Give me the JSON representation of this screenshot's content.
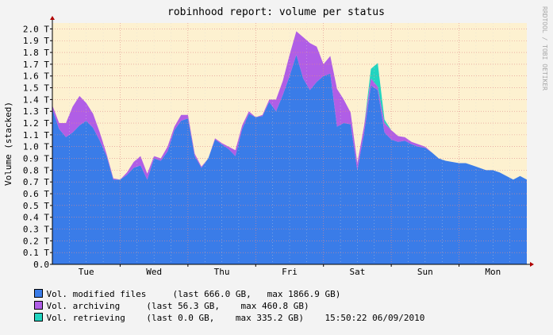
{
  "chart_data": {
    "type": "area",
    "title": "robinhood report: volume per status",
    "ylabel": "Volume (stacked)",
    "side_label": "RRDTOOL / TOBI OETIKER",
    "ylim": [
      0,
      2.05
    ],
    "yticks": [
      0,
      0.1,
      0.2,
      0.3,
      0.4,
      0.5,
      0.6,
      0.7,
      0.8,
      0.9,
      1.0,
      1.1,
      1.2,
      1.3,
      1.4,
      1.5,
      1.6,
      1.7,
      1.8,
      1.9,
      2.0
    ],
    "ytick_labels": [
      "0.0",
      "0.1 T",
      "0.2 T",
      "0.3 T",
      "0.4 T",
      "0.5 T",
      "0.6 T",
      "0.7 T",
      "0.8 T",
      "0.9 T",
      "1.0 T",
      "1.1 T",
      "1.2 T",
      "1.3 T",
      "1.4 T",
      "1.5 T",
      "1.6 T",
      "1.7 T",
      "1.8 T",
      "1.9 T",
      "2.0 T"
    ],
    "xlim": [
      0,
      7.0
    ],
    "xticks": [
      0.5,
      1.5,
      2.5,
      3.5,
      4.5,
      5.5,
      6.5
    ],
    "xtick_labels": [
      "Tue",
      "Wed",
      "Thu",
      "Fri",
      "Sat",
      "Sun",
      "Mon"
    ],
    "x_days": [
      0.0,
      0.1,
      0.2,
      0.3,
      0.4,
      0.5,
      0.6,
      0.7,
      0.8,
      0.9,
      1.0,
      1.1,
      1.2,
      1.3,
      1.4,
      1.5,
      1.6,
      1.7,
      1.8,
      1.9,
      2.0,
      2.1,
      2.2,
      2.3,
      2.4,
      2.5,
      2.6,
      2.7,
      2.8,
      2.9,
      3.0,
      3.1,
      3.2,
      3.3,
      3.4,
      3.5,
      3.6,
      3.7,
      3.8,
      3.9,
      4.0,
      4.1,
      4.2,
      4.3,
      4.4,
      4.5,
      4.6,
      4.7,
      4.8,
      4.9,
      5.0,
      5.1,
      5.2,
      5.3,
      5.4,
      5.5,
      5.6,
      5.7,
      5.8,
      5.9,
      6.0,
      6.1,
      6.2,
      6.3,
      6.4,
      6.5,
      6.6,
      6.7,
      6.8,
      6.9,
      7.0
    ],
    "grid": true,
    "series": [
      {
        "name": "Vol. modified files",
        "color": "#3a7ce8",
        "values": [
          1.32,
          1.15,
          1.08,
          1.12,
          1.18,
          1.22,
          1.16,
          1.05,
          0.92,
          0.72,
          0.72,
          0.76,
          0.82,
          0.84,
          0.72,
          0.9,
          0.88,
          0.96,
          1.14,
          1.22,
          1.24,
          0.92,
          0.82,
          0.9,
          1.06,
          1.02,
          0.98,
          0.92,
          1.15,
          1.28,
          1.25,
          1.26,
          1.38,
          1.3,
          1.44,
          1.6,
          1.78,
          1.58,
          1.48,
          1.55,
          1.6,
          1.62,
          1.17,
          1.2,
          1.19,
          0.8,
          1.12,
          1.52,
          1.48,
          1.12,
          1.06,
          1.04,
          1.05,
          1.02,
          1.0,
          0.99,
          0.95,
          0.9,
          0.88,
          0.87,
          0.86,
          0.86,
          0.84,
          0.82,
          0.8,
          0.8,
          0.78,
          0.75,
          0.72,
          0.75,
          0.72
        ]
      },
      {
        "name": "Vol. archiving",
        "color": "#b05ee6",
        "values": [
          0.03,
          0.05,
          0.12,
          0.22,
          0.25,
          0.15,
          0.12,
          0.07,
          0.02,
          0.01,
          0.0,
          0.02,
          0.05,
          0.08,
          0.05,
          0.02,
          0.02,
          0.04,
          0.03,
          0.05,
          0.03,
          0.02,
          0.01,
          0.0,
          0.01,
          0.01,
          0.02,
          0.05,
          0.03,
          0.02,
          0.0,
          0.01,
          0.02,
          0.1,
          0.12,
          0.18,
          0.2,
          0.35,
          0.4,
          0.3,
          0.1,
          0.15,
          0.32,
          0.2,
          0.1,
          0.06,
          0.06,
          0.06,
          0.03,
          0.08,
          0.08,
          0.05,
          0.03,
          0.02,
          0.02,
          0.01,
          0.0,
          0.0,
          0.0,
          0.0,
          0.0,
          0.0,
          0.0,
          0.0,
          0.0,
          0.0,
          0.0,
          0.0,
          0.0,
          0.0,
          0.0
        ]
      },
      {
        "name": "Vol. retrieving",
        "color": "#22d4c0",
        "values": [
          0,
          0,
          0,
          0,
          0,
          0,
          0,
          0,
          0,
          0,
          0,
          0,
          0,
          0,
          0,
          0,
          0,
          0,
          0,
          0,
          0,
          0,
          0,
          0,
          0,
          0,
          0,
          0,
          0,
          0,
          0,
          0,
          0,
          0,
          0,
          0,
          0,
          0,
          0,
          0,
          0,
          0,
          0,
          0,
          0,
          0,
          0,
          0.08,
          0.2,
          0.03,
          0,
          0,
          0,
          0,
          0,
          0,
          0,
          0,
          0,
          0,
          0,
          0,
          0,
          0,
          0,
          0,
          0,
          0,
          0,
          0,
          0
        ]
      }
    ],
    "legend": [
      {
        "text": "Vol. modified files     (last 666.0 GB,   max 1866.9 GB)",
        "color": "#3a7ce8"
      },
      {
        "text": "Vol. archiving     (last 56.3 GB,    max 460.8 GB)",
        "color": "#b05ee6"
      },
      {
        "text": "Vol. retrieving    (last 0.0 GB,    max 335.2 GB)    15:50:22 06/09/2010",
        "color": "#22d4c0"
      }
    ]
  }
}
